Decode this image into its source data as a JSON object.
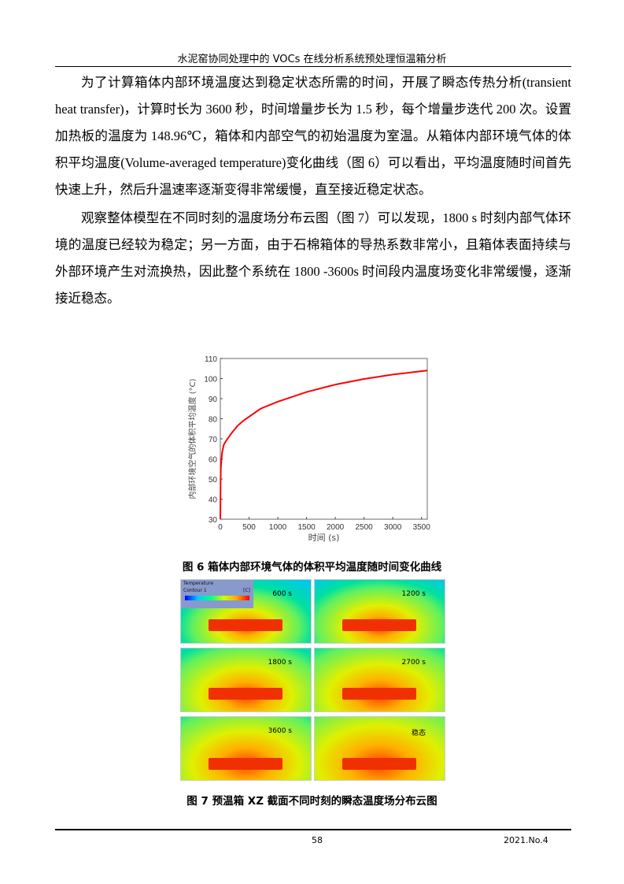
{
  "header": {
    "title": "水泥窑协同处理中的 VOCs 在线分析系统预处理恒温箱分析"
  },
  "body": {
    "paragraphs": [
      "为了计算箱体内部环境温度达到稳定状态所需的时间，开展了瞬态传热分析(transient heat transfer)，计算时长为 3600 秒，时间增量步长为 1.5 秒，每个增量步迭代 200 次。设置加热板的温度为 148.96℃，箱体和内部空气的初始温度为室温。从箱体内部环境气体的体积平均温度(Volume-averaged temperature)变化曲线（图 6）可以看出，平均温度随时间首先快速上升，然后升温速率逐渐变得非常缓慢，直至接近稳定状态。",
      "观察整体模型在不同时刻的温度场分布云图（图 7）可以发现，1800 s 时刻内部气体环境的温度已经较为稳定；另一方面，由于石棉箱体的导热系数非常小，且箱体表面持续与外部环境产生对流换热，因此整个系统在 1800 -3600s 时间段内温度场变化非常缓慢，逐渐接近稳态。"
    ]
  },
  "chart_data": {
    "type": "line",
    "xlabel": "时间 (s)",
    "ylabel": "内部环境空气的体积平均温度 (°C)",
    "xlim": [
      0,
      3600
    ],
    "ylim": [
      30,
      110
    ],
    "xticks": [
      "0",
      "500",
      "1000",
      "1500",
      "2000",
      "2500",
      "3000",
      "3500"
    ],
    "yticks": [
      "30",
      "40",
      "50",
      "60",
      "70",
      "80",
      "90",
      "100",
      "110"
    ],
    "grid": false,
    "color": "#ff0000",
    "x": [
      0,
      5,
      10,
      30,
      60,
      100,
      200,
      300,
      400,
      500,
      700,
      1000,
      1500,
      2000,
      2500,
      3000,
      3600
    ],
    "y": [
      30,
      50,
      56,
      63,
      67,
      69,
      73,
      76.5,
      79,
      81,
      85,
      88.5,
      93.3,
      97,
      99.8,
      102,
      104
    ]
  },
  "figure6": {
    "caption": "图 6 箱体内部环境气体的体积平均温度随时间变化曲线"
  },
  "figure7": {
    "caption": "图 7 预温箱 XZ 截面不同时刻的瞬态温度场分布云图",
    "legend": {
      "title": "Temperature",
      "subtitle": "Contour 1",
      "unit": "[C]"
    },
    "panels": [
      {
        "label": "600 s",
        "level": 0.2
      },
      {
        "label": "1200 s",
        "level": 0.35
      },
      {
        "label": "1800 s",
        "level": 0.55
      },
      {
        "label": "2700 s",
        "level": 0.65
      },
      {
        "label": "3600 s",
        "level": 0.7
      },
      {
        "label": "稳态",
        "level": 0.85
      }
    ]
  },
  "footer": {
    "page": "58",
    "issue": "2021.No.4"
  }
}
